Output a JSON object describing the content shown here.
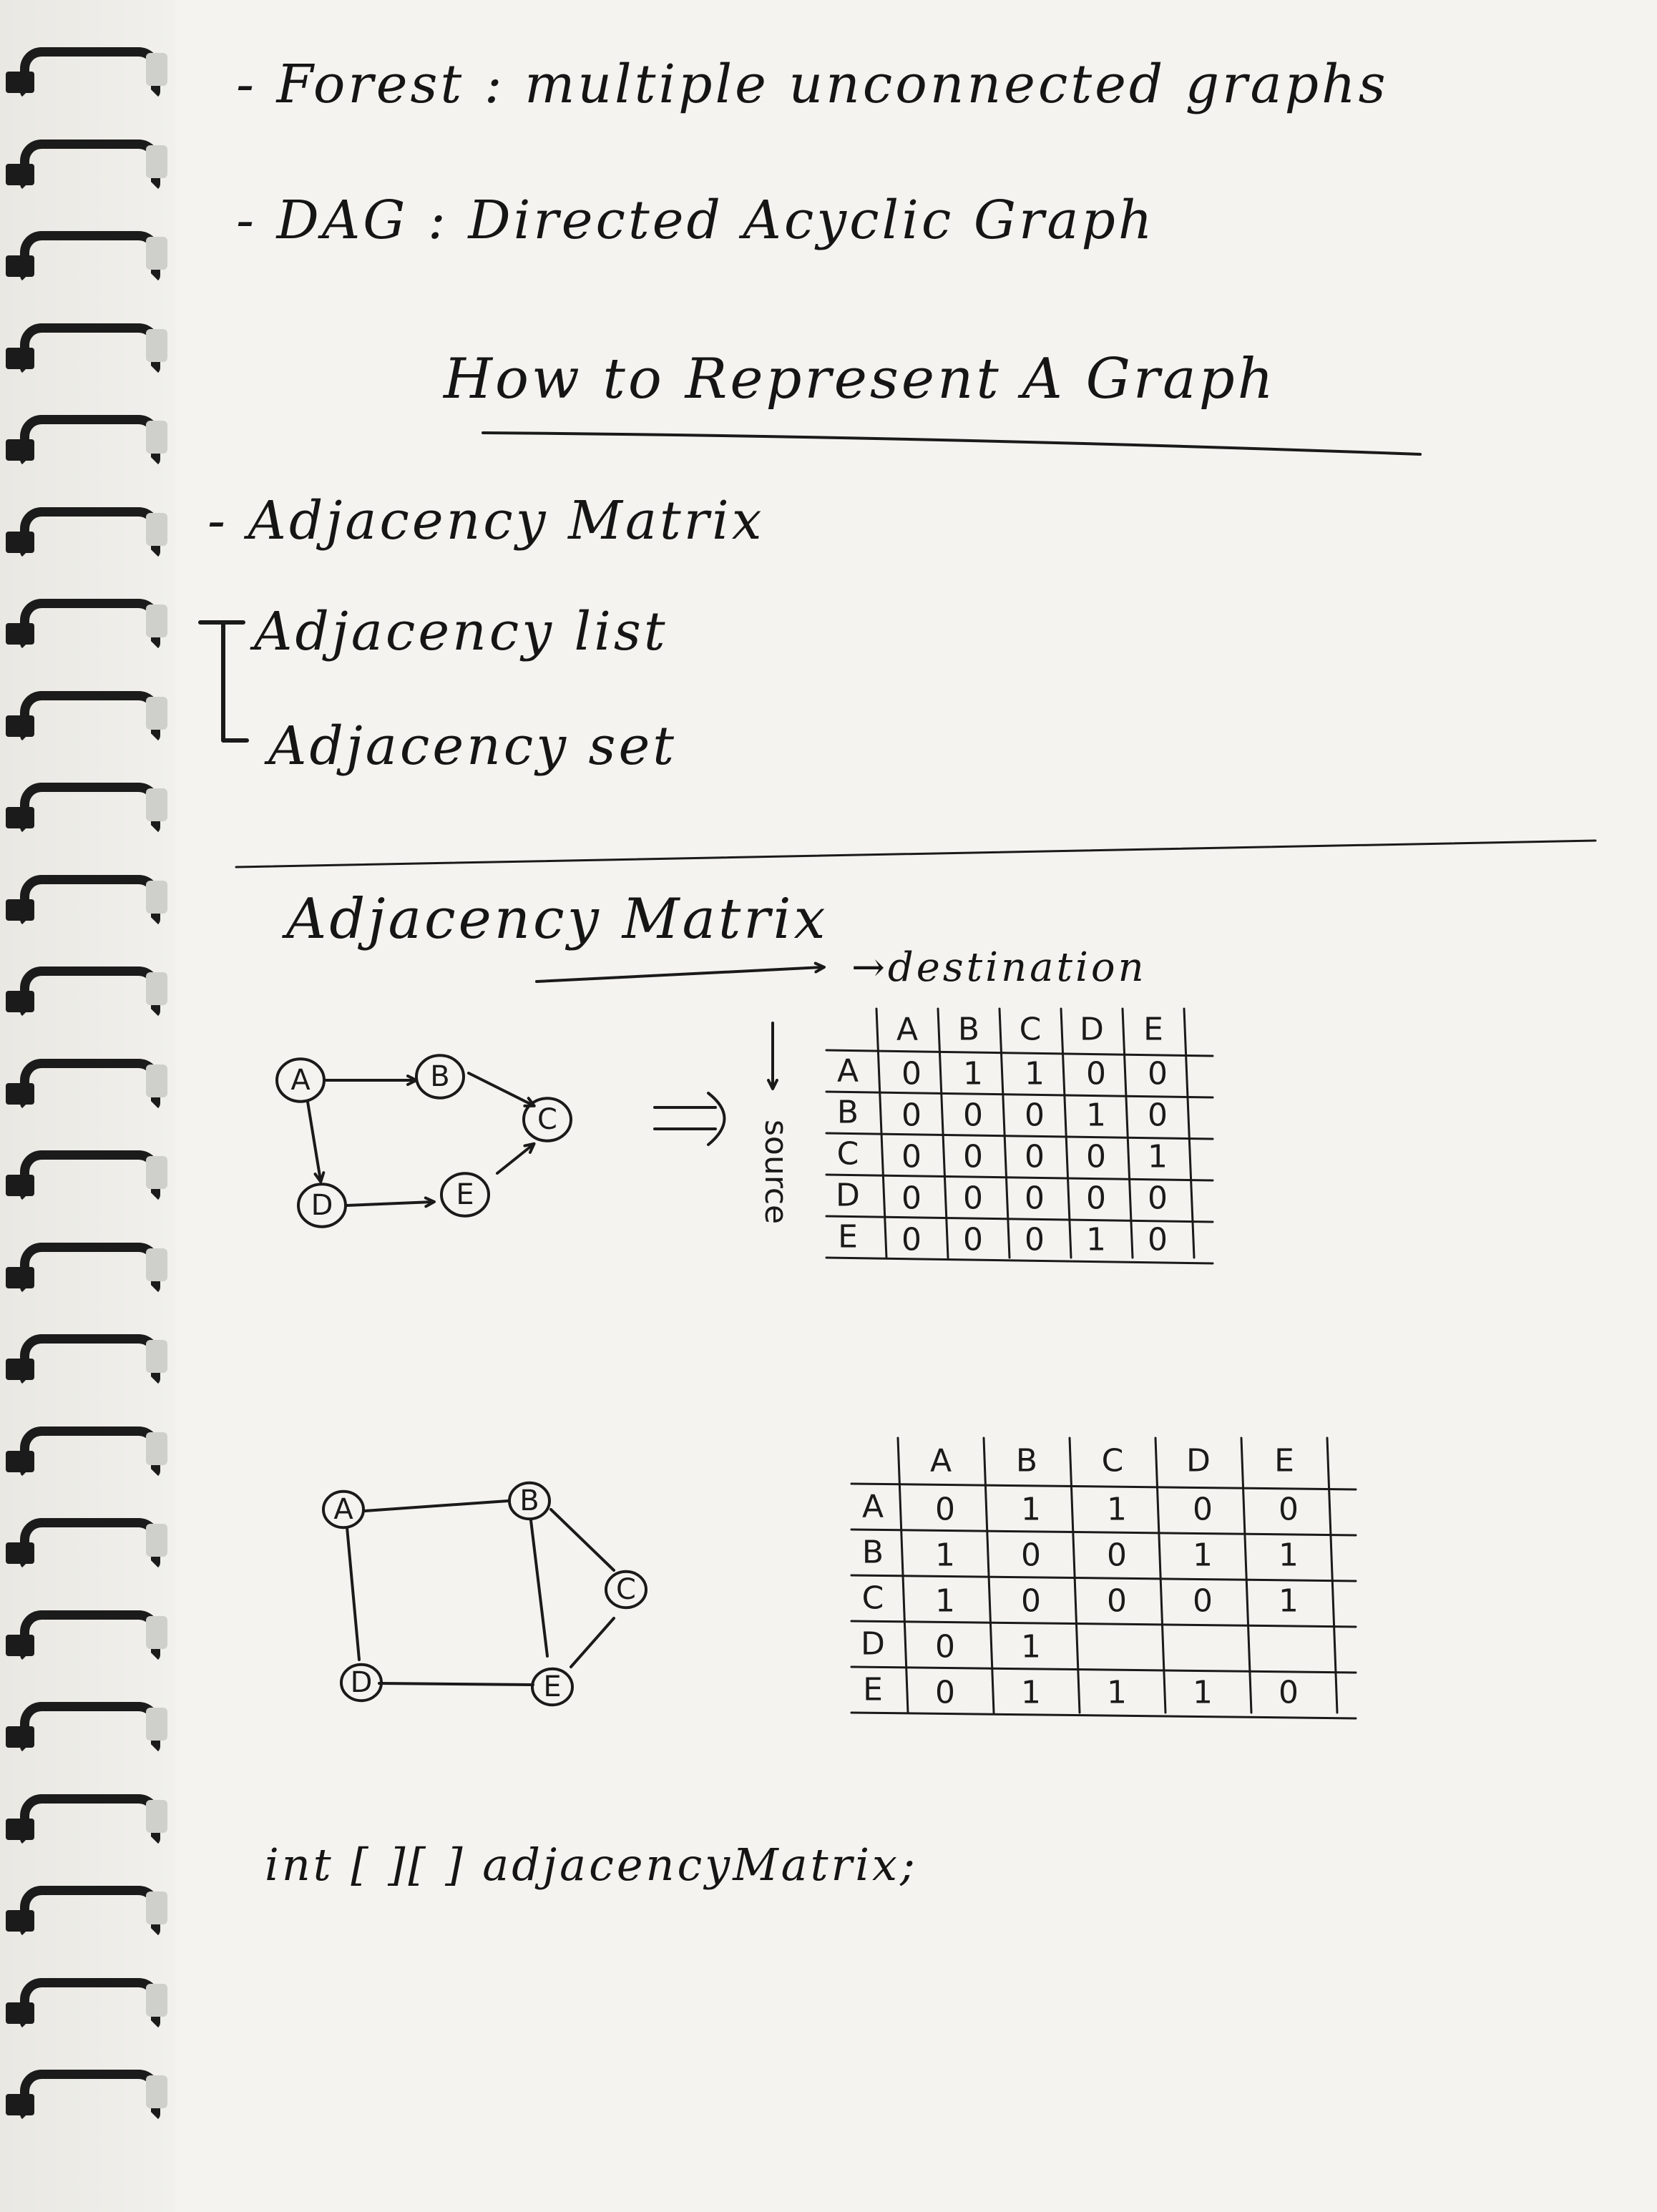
{
  "notes": {
    "line1": "- Forest : multiple unconnected graphs",
    "line2": "- DAG : Directed Acyclic Graph",
    "heading": "How to Represent A Graph",
    "list": [
      "- Adjacency Matrix",
      "Adjacency list",
      "Adjacency set"
    ],
    "section_title": "Adjacency Matrix",
    "destination_label": "→destination",
    "source_label": "source",
    "code": "int [ ][ ] adjacencyMatrix;"
  },
  "directed_graph": {
    "nodes": [
      "A",
      "B",
      "C",
      "D",
      "E"
    ]
  },
  "directed_matrix": {
    "headers": [
      "A",
      "B",
      "C",
      "D",
      "E"
    ],
    "rows": [
      {
        "label": "A",
        "cells": [
          "0",
          "1",
          "1",
          "0",
          "0"
        ]
      },
      {
        "label": "B",
        "cells": [
          "0",
          "0",
          "0",
          "1",
          "0"
        ]
      },
      {
        "label": "C",
        "cells": [
          "0",
          "0",
          "0",
          "0",
          "1"
        ]
      },
      {
        "label": "D",
        "cells": [
          "0",
          "0",
          "0",
          "0",
          "0"
        ]
      },
      {
        "label": "E",
        "cells": [
          "0",
          "0",
          "0",
          "1",
          "0"
        ]
      }
    ]
  },
  "undirected_graph": {
    "nodes": [
      "A",
      "B",
      "C",
      "D",
      "E"
    ]
  },
  "undirected_matrix": {
    "headers": [
      "A",
      "B",
      "C",
      "D",
      "E"
    ],
    "rows": [
      {
        "label": "A",
        "cells": [
          "0",
          "1",
          "1",
          "0",
          "0"
        ]
      },
      {
        "label": "B",
        "cells": [
          "1",
          "0",
          "0",
          "1",
          "1"
        ]
      },
      {
        "label": "C",
        "cells": [
          "1",
          "0",
          "0",
          "0",
          "1"
        ]
      },
      {
        "label": "D",
        "cells": [
          "0",
          "1",
          "",
          "",
          ""
        ]
      },
      {
        "label": "E",
        "cells": [
          "0",
          "1",
          "1",
          "1",
          "0"
        ]
      }
    ]
  }
}
